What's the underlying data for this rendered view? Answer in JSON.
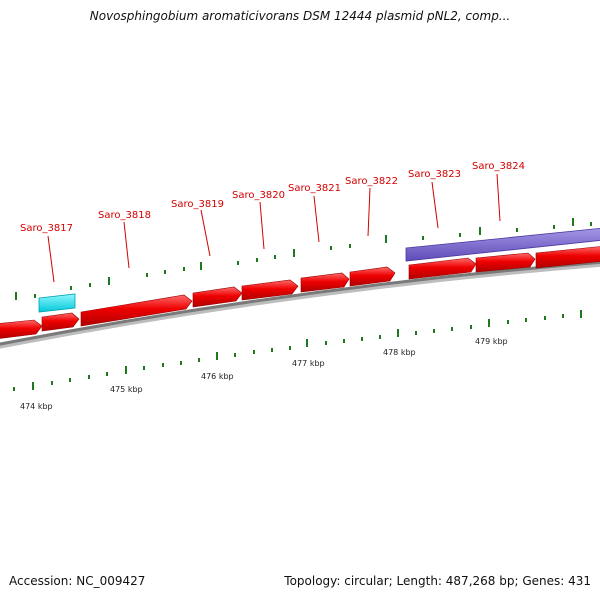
{
  "title": "Novosphingobium aromaticivorans DSM 12444 plasmid pNL2, comp...",
  "footer": {
    "accession": "Accession: NC_009427",
    "summary": "Topology: circular; Length: 487,268 bp; Genes: 431"
  },
  "colors": {
    "forward_gene": "#ee0000",
    "reverse_gene": "#ee0000",
    "cyan_feature": "#00e5ee",
    "purple_feature": "#7b68cc",
    "backbone": "#888888",
    "tick": "#1f7a1f",
    "label": "#d40000"
  },
  "gene_labels": [
    "Saro_3817",
    "Saro_3818",
    "Saro_3819",
    "Saro_3820",
    "Saro_3821",
    "Saro_3822",
    "Saro_3823",
    "Saro_3824"
  ],
  "kbp_labels": [
    "474 kbp",
    "475 kbp",
    "476 kbp",
    "477 kbp",
    "478 kbp",
    "479 kbp"
  ]
}
